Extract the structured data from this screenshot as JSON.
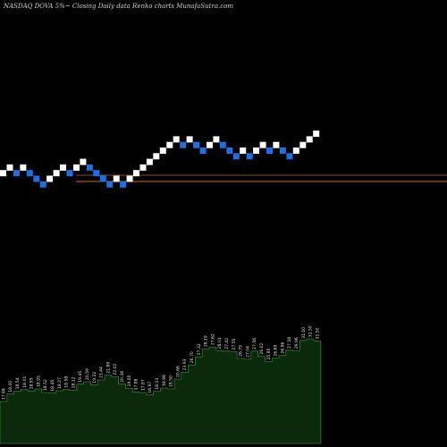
{
  "chart_data": {
    "type": "renko",
    "title": "NASDAQ DOVA 5%~   Closing Daily data  Renko  charts MunafaSutra.com",
    "colors": {
      "background": "#000000",
      "up_brick": "#ffffff",
      "down_brick": "#1e6fe0",
      "line_primary": "#cc6a2a",
      "line_secondary": "#8a4a1e",
      "volume_fill": "#0b2a0b",
      "volume_stroke": "#2f7a2f",
      "text": "#e6e6e6"
    },
    "reference_lines": [
      203,
      196
    ],
    "bricks": [
      {
        "dir": "up",
        "level": 1
      },
      {
        "dir": "up",
        "level": 2
      },
      {
        "dir": "down",
        "level": 1
      },
      {
        "dir": "up",
        "level": 2
      },
      {
        "dir": "down",
        "level": 1
      },
      {
        "dir": "down",
        "level": 0
      },
      {
        "dir": "down",
        "level": -1
      },
      {
        "dir": "up",
        "level": 0
      },
      {
        "dir": "up",
        "level": 1
      },
      {
        "dir": "up",
        "level": 2
      },
      {
        "dir": "down",
        "level": 1
      },
      {
        "dir": "up",
        "level": 2
      },
      {
        "dir": "up",
        "level": 3
      },
      {
        "dir": "down",
        "level": 2
      },
      {
        "dir": "down",
        "level": 1
      },
      {
        "dir": "down",
        "level": 0
      },
      {
        "dir": "down",
        "level": -1
      },
      {
        "dir": "up",
        "level": 0
      },
      {
        "dir": "down",
        "level": -1
      },
      {
        "dir": "up",
        "level": 0
      },
      {
        "dir": "up",
        "level": 1
      },
      {
        "dir": "up",
        "level": 2
      },
      {
        "dir": "up",
        "level": 3
      },
      {
        "dir": "up",
        "level": 4
      },
      {
        "dir": "up",
        "level": 5
      },
      {
        "dir": "up",
        "level": 6
      },
      {
        "dir": "up",
        "level": 7
      },
      {
        "dir": "down",
        "level": 6
      },
      {
        "dir": "up",
        "level": 7
      },
      {
        "dir": "down",
        "level": 6
      },
      {
        "dir": "down",
        "level": 5
      },
      {
        "dir": "up",
        "level": 6
      },
      {
        "dir": "up",
        "level": 7
      },
      {
        "dir": "down",
        "level": 6
      },
      {
        "dir": "down",
        "level": 5
      },
      {
        "dir": "down",
        "level": 4
      },
      {
        "dir": "up",
        "level": 5
      },
      {
        "dir": "down",
        "level": 4
      },
      {
        "dir": "up",
        "level": 5
      },
      {
        "dir": "up",
        "level": 6
      },
      {
        "dir": "down",
        "level": 5
      },
      {
        "dir": "up",
        "level": 6
      },
      {
        "dir": "down",
        "level": 5
      },
      {
        "dir": "down",
        "level": 4
      },
      {
        "dir": "up",
        "level": 5
      },
      {
        "dir": "up",
        "level": 6
      },
      {
        "dir": "up",
        "level": 7
      },
      {
        "dir": "up",
        "level": 8
      }
    ],
    "volume": {
      "values": [
        14.0,
        16.5,
        17.5,
        18.0,
        17.5,
        18.2,
        17.0,
        16.8,
        17.6,
        18.0,
        17.8,
        19.8,
        20.6,
        19.5,
        21.2,
        22.8,
        22.2,
        19.8,
        18.4,
        17.2,
        17.0,
        16.2,
        17.4,
        18.5,
        18.2,
        21.5,
        23.8,
        26.2,
        28.9,
        31.6,
        32.2,
        31.0,
        30.8,
        30.6,
        28.4,
        28.1,
        30.8,
        29.1,
        27.3,
        28.5,
        29.4,
        31.1,
        31.0,
        34.4,
        34.9,
        34.2
      ],
      "labels": [
        "17.68",
        "18.00",
        "18.54",
        "18.01",
        "18.95",
        "18.95",
        "18.52",
        "18.45",
        "18.27",
        "18.58",
        "18.12",
        "19.45",
        "20.59",
        "19.22",
        "21.44",
        "21.89",
        "22.02",
        "20.36",
        "19.00",
        "17.88",
        "17.87",
        "16.97",
        "18.03",
        "18.98",
        "18.50",
        "20.66",
        "23.93",
        "26.70",
        "27.32",
        "28.19",
        "27.62",
        "28.01",
        "27.42",
        "27.55",
        "26.79",
        "27.04",
        "27.56",
        "26.02",
        "25.95",
        "26.69",
        "26.96",
        "27.58",
        "29.96",
        "31.00",
        "31.50",
        "31.50"
      ]
    }
  }
}
